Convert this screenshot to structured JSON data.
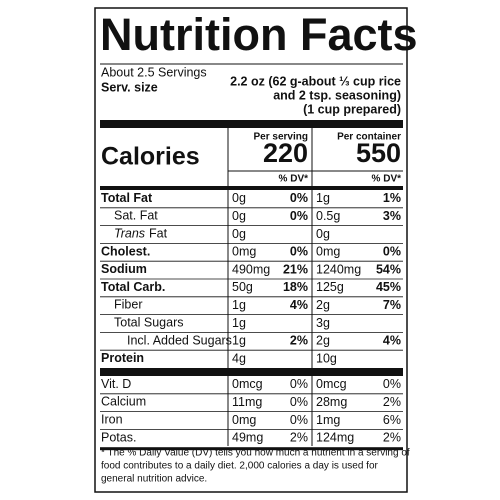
{
  "title": "Nutrition Facts",
  "servings": "About 2.5 Servings",
  "serving_size": {
    "label": "Serv. size",
    "lines": [
      "2.2 oz (62 g-about ⅓ cup rice",
      "and 2 tsp. seasoning)",
      "(1 cup prepared)"
    ]
  },
  "columns": {
    "per_serving": "Per serving",
    "per_container": "Per container"
  },
  "calories": {
    "label": "Calories",
    "per_serving": "220",
    "per_container": "550"
  },
  "dv_header": [
    "% DV*",
    "% DV*"
  ],
  "rows": [
    {
      "label": "Total Fat",
      "serving_amount": "0g",
      "serving_dv": "0%",
      "container_amount": "1g",
      "container_dv": "1%",
      "bold": true,
      "level": 0
    },
    {
      "label": "Sat. Fat",
      "serving_amount": "0g",
      "serving_dv": "0%",
      "container_amount": "0.5g",
      "container_dv": "3%",
      "bold": false,
      "level": 1
    },
    {
      "label_em": "Trans",
      "label": "Fat",
      "serving_amount": "0g",
      "container_amount": "0g",
      "bold": false,
      "level": 1
    },
    {
      "label": "Cholest.",
      "serving_amount": "0mg",
      "serving_dv": "0%",
      "container_amount": "0mg",
      "container_dv": "0%",
      "bold": true,
      "level": 0
    },
    {
      "label": "Sodium",
      "serving_amount": "490mg",
      "serving_dv": "21%",
      "container_amount": "1240mg",
      "container_dv": "54%",
      "bold": true,
      "level": 0
    },
    {
      "label": "Total Carb.",
      "serving_amount": "50g",
      "serving_dv": "18%",
      "container_amount": "125g",
      "container_dv": "45%",
      "bold": true,
      "level": 0
    },
    {
      "label": "Fiber",
      "serving_amount": "1g",
      "serving_dv": "4%",
      "container_amount": "2g",
      "container_dv": "7%",
      "bold": false,
      "level": 1
    },
    {
      "label": "Total Sugars",
      "serving_amount": "1g",
      "container_amount": "3g",
      "bold": false,
      "level": 1
    },
    {
      "label": "Incl. Added Sugars",
      "serving_amount": "1g",
      "serving_dv": "2%",
      "container_amount": "2g",
      "container_dv": "4%",
      "bold": false,
      "level": 2
    },
    {
      "label": "Protein",
      "serving_amount": "4g",
      "container_amount": "10g",
      "bold": true,
      "level": 0
    }
  ],
  "vitamins": [
    {
      "label": "Vit. D",
      "serving_amount": "0mcg",
      "serving_dv": "0%",
      "container_amount": "0mcg",
      "container_dv": "0%"
    },
    {
      "label": "Calcium",
      "serving_amount": "11mg",
      "serving_dv": "0%",
      "container_amount": "28mg",
      "container_dv": "2%"
    },
    {
      "label": "Iron",
      "serving_amount": "0mg",
      "serving_dv": "0%",
      "container_amount": "1mg",
      "container_dv": "6%"
    },
    {
      "label": "Potas.",
      "serving_amount": "49mg",
      "serving_dv": "2%",
      "container_amount": "124mg",
      "container_dv": "2%"
    }
  ],
  "footnote": [
    "* The % Daily Value (DV) tells you how much a nutrient in a serving of",
    "food contributes to a daily diet. 2,000 calories a day is used for",
    "general nutrition advice."
  ]
}
